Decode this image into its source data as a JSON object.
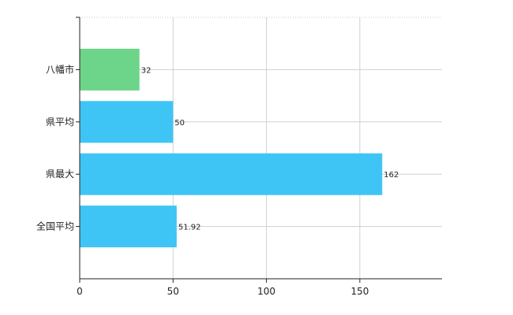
{
  "chart_data": {
    "type": "bar",
    "orientation": "horizontal",
    "title": "",
    "xlabel": "",
    "ylabel": "",
    "categories": [
      "八幡市",
      "県平均",
      "県最大",
      "全国平均"
    ],
    "values": [
      32,
      50,
      162,
      51.92
    ],
    "value_labels": [
      "32",
      "50",
      "162",
      "51.92"
    ],
    "bar_colors": [
      "#6dd589",
      "#3ec5f5",
      "#3ec5f5",
      "#3ec5f5"
    ],
    "xlim": [
      0,
      194
    ],
    "xticks": [
      0,
      50,
      100,
      150
    ],
    "xtick_labels": [
      "0",
      "50",
      "100",
      "150"
    ],
    "grid": true,
    "legend": "none"
  }
}
